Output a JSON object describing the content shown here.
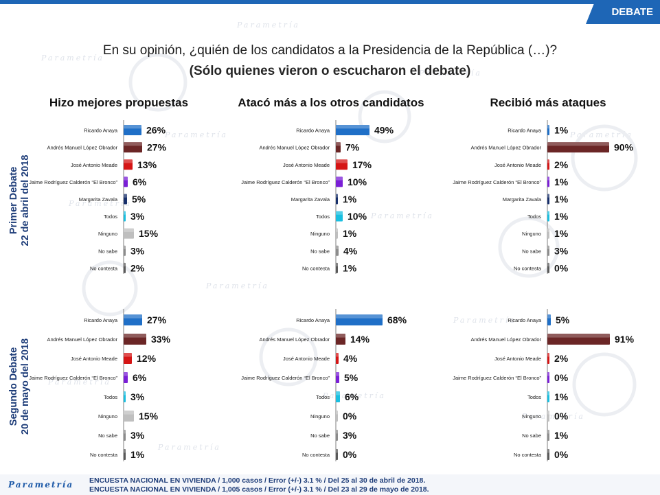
{
  "header": {
    "tag": "DEBATE"
  },
  "title": {
    "line1": "En su opinión, ¿quién de los candidatos a la Presidencia de la República (…)?",
    "line2": "(Sólo quienes vieron o escucharon el debate)"
  },
  "columns": [
    "Hizo mejores propuestas",
    "Atacó más a los otros candidatos",
    "Recibió más ataques"
  ],
  "rows": [
    {
      "line1": "Primer Debate",
      "line2": "22 de abril del 2018"
    },
    {
      "line1": "Segundo Debate",
      "line2": "20 de mayo del 2018"
    }
  ],
  "watermark": {
    "brand": "Parametría"
  },
  "footer": {
    "brand": "Parametría",
    "note1": "ENCUESTA NACIONAL EN VIVIENDA / 1,000 casos / Error (+/-) 3.1 % / Del 25 al 30 de abril de 2018.",
    "note2": "ENCUESTA NACIONAL EN VIVIENDA / 1,005 casos / Error (+/-) 3.1 % / Del 23 al 29 de mayo de 2018."
  },
  "colors": {
    "Ricardo Anaya": "#1f6fc7",
    "Andrés Manuel López Obrador": "#6b2626",
    "José Antonio Meade": "#d51515",
    "Jaime Rodríguez Calderón “El Bronco”": "#7a1fd6",
    "Margarita Zavala": "#172f6b",
    "Todos": "#19bfe0",
    "Ninguno": "#bfbfbf",
    "No sabe": "#8c8c8c",
    "No contesta": "#5a5a5a"
  },
  "chart_data": [
    {
      "type": "bar",
      "title": "Hizo mejores propuestas",
      "panel": "Primer Debate",
      "categories": [
        "Ricardo Anaya",
        "Andrés Manuel López Obrador",
        "José Antonio Meade",
        "Jaime Rodríguez Calderón “El Bronco”",
        "Margarita Zavala",
        "Todos",
        "Ninguno",
        "No sabe",
        "No contesta"
      ],
      "values": [
        26,
        27,
        13,
        6,
        5,
        3,
        15,
        3,
        2
      ],
      "unit": "%",
      "xlim": [
        0,
        100
      ]
    },
    {
      "type": "bar",
      "title": "Atacó más a los otros candidatos",
      "panel": "Primer Debate",
      "categories": [
        "Ricardo Anaya",
        "Andrés Manuel López Obrador",
        "José Antonio Meade",
        "Jaime Rodríguez Calderón “El Bronco”",
        "Margarita Zavala",
        "Todos",
        "Ninguno",
        "No sabe",
        "No contesta"
      ],
      "values": [
        49,
        7,
        17,
        10,
        1,
        10,
        1,
        4,
        1
      ],
      "unit": "%",
      "xlim": [
        0,
        100
      ]
    },
    {
      "type": "bar",
      "title": "Recibió más ataques",
      "panel": "Primer Debate",
      "categories": [
        "Ricardo Anaya",
        "Andrés Manuel López Obrador",
        "José Antonio Meade",
        "Jaime Rodríguez Calderón “El Bronco”",
        "Margarita Zavala",
        "Todos",
        "Ninguno",
        "No sabe",
        "No contesta"
      ],
      "values": [
        1,
        90,
        2,
        1,
        1,
        1,
        1,
        3,
        0
      ],
      "unit": "%",
      "xlim": [
        0,
        100
      ]
    },
    {
      "type": "bar",
      "title": "Hizo mejores propuestas",
      "panel": "Segundo Debate",
      "categories": [
        "Ricardo Anaya",
        "Andrés Manuel López Obrador",
        "José Antonio Meade",
        "Jaime Rodríguez Calderón “El Bronco”",
        "Todos",
        "Ninguno",
        "No sabe",
        "No contesta"
      ],
      "values": [
        27,
        33,
        12,
        6,
        3,
        15,
        3,
        1
      ],
      "unit": "%",
      "xlim": [
        0,
        100
      ]
    },
    {
      "type": "bar",
      "title": "Atacó más a los otros candidatos",
      "panel": "Segundo Debate",
      "categories": [
        "Ricardo Anaya",
        "Andrés Manuel López Obrador",
        "José Antonio Meade",
        "Jaime Rodríguez Calderón “El Bronco”",
        "Todos",
        "Ninguno",
        "No sabe",
        "No contesta"
      ],
      "values": [
        68,
        14,
        4,
        5,
        6,
        0,
        3,
        0
      ],
      "unit": "%",
      "xlim": [
        0,
        100
      ]
    },
    {
      "type": "bar",
      "title": "Recibió más ataques",
      "panel": "Segundo Debate",
      "categories": [
        "Ricardo Anaya",
        "Andrés Manuel López Obrador",
        "José Antonio Meade",
        "Jaime Rodríguez Calderón “El Bronco”",
        "Todos",
        "Ninguno",
        "No sabe",
        "No contesta"
      ],
      "values": [
        5,
        91,
        2,
        0,
        1,
        0,
        1,
        0
      ],
      "unit": "%",
      "xlim": [
        0,
        100
      ]
    }
  ]
}
